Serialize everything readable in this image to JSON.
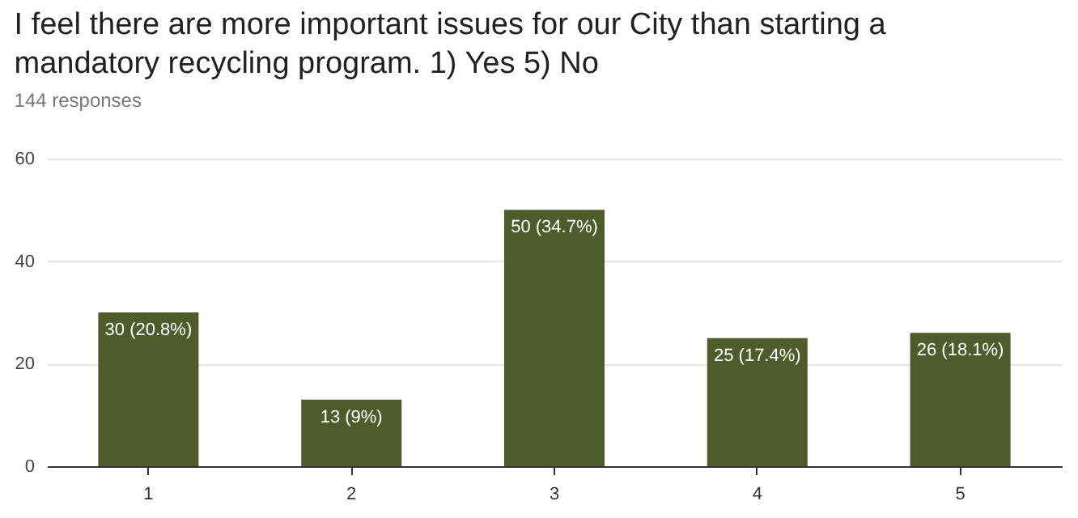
{
  "chart_data": {
    "type": "bar",
    "title": "I feel there are more important issues for our City than starting a mandatory recycling program. 1) Yes 5) No",
    "subtitle": "144 responses",
    "categories": [
      "1",
      "2",
      "3",
      "4",
      "5"
    ],
    "values": [
      30,
      13,
      50,
      25,
      26
    ],
    "value_labels": [
      "30 (20.8%)",
      "13 (9%)",
      "50 (34.7%)",
      "25 (17.4%)",
      "26 (18.1%)"
    ],
    "color": "#4e5b2a",
    "ylim": [
      0,
      60
    ],
    "yticks": [
      0,
      20,
      40,
      60
    ],
    "grid": "y"
  }
}
